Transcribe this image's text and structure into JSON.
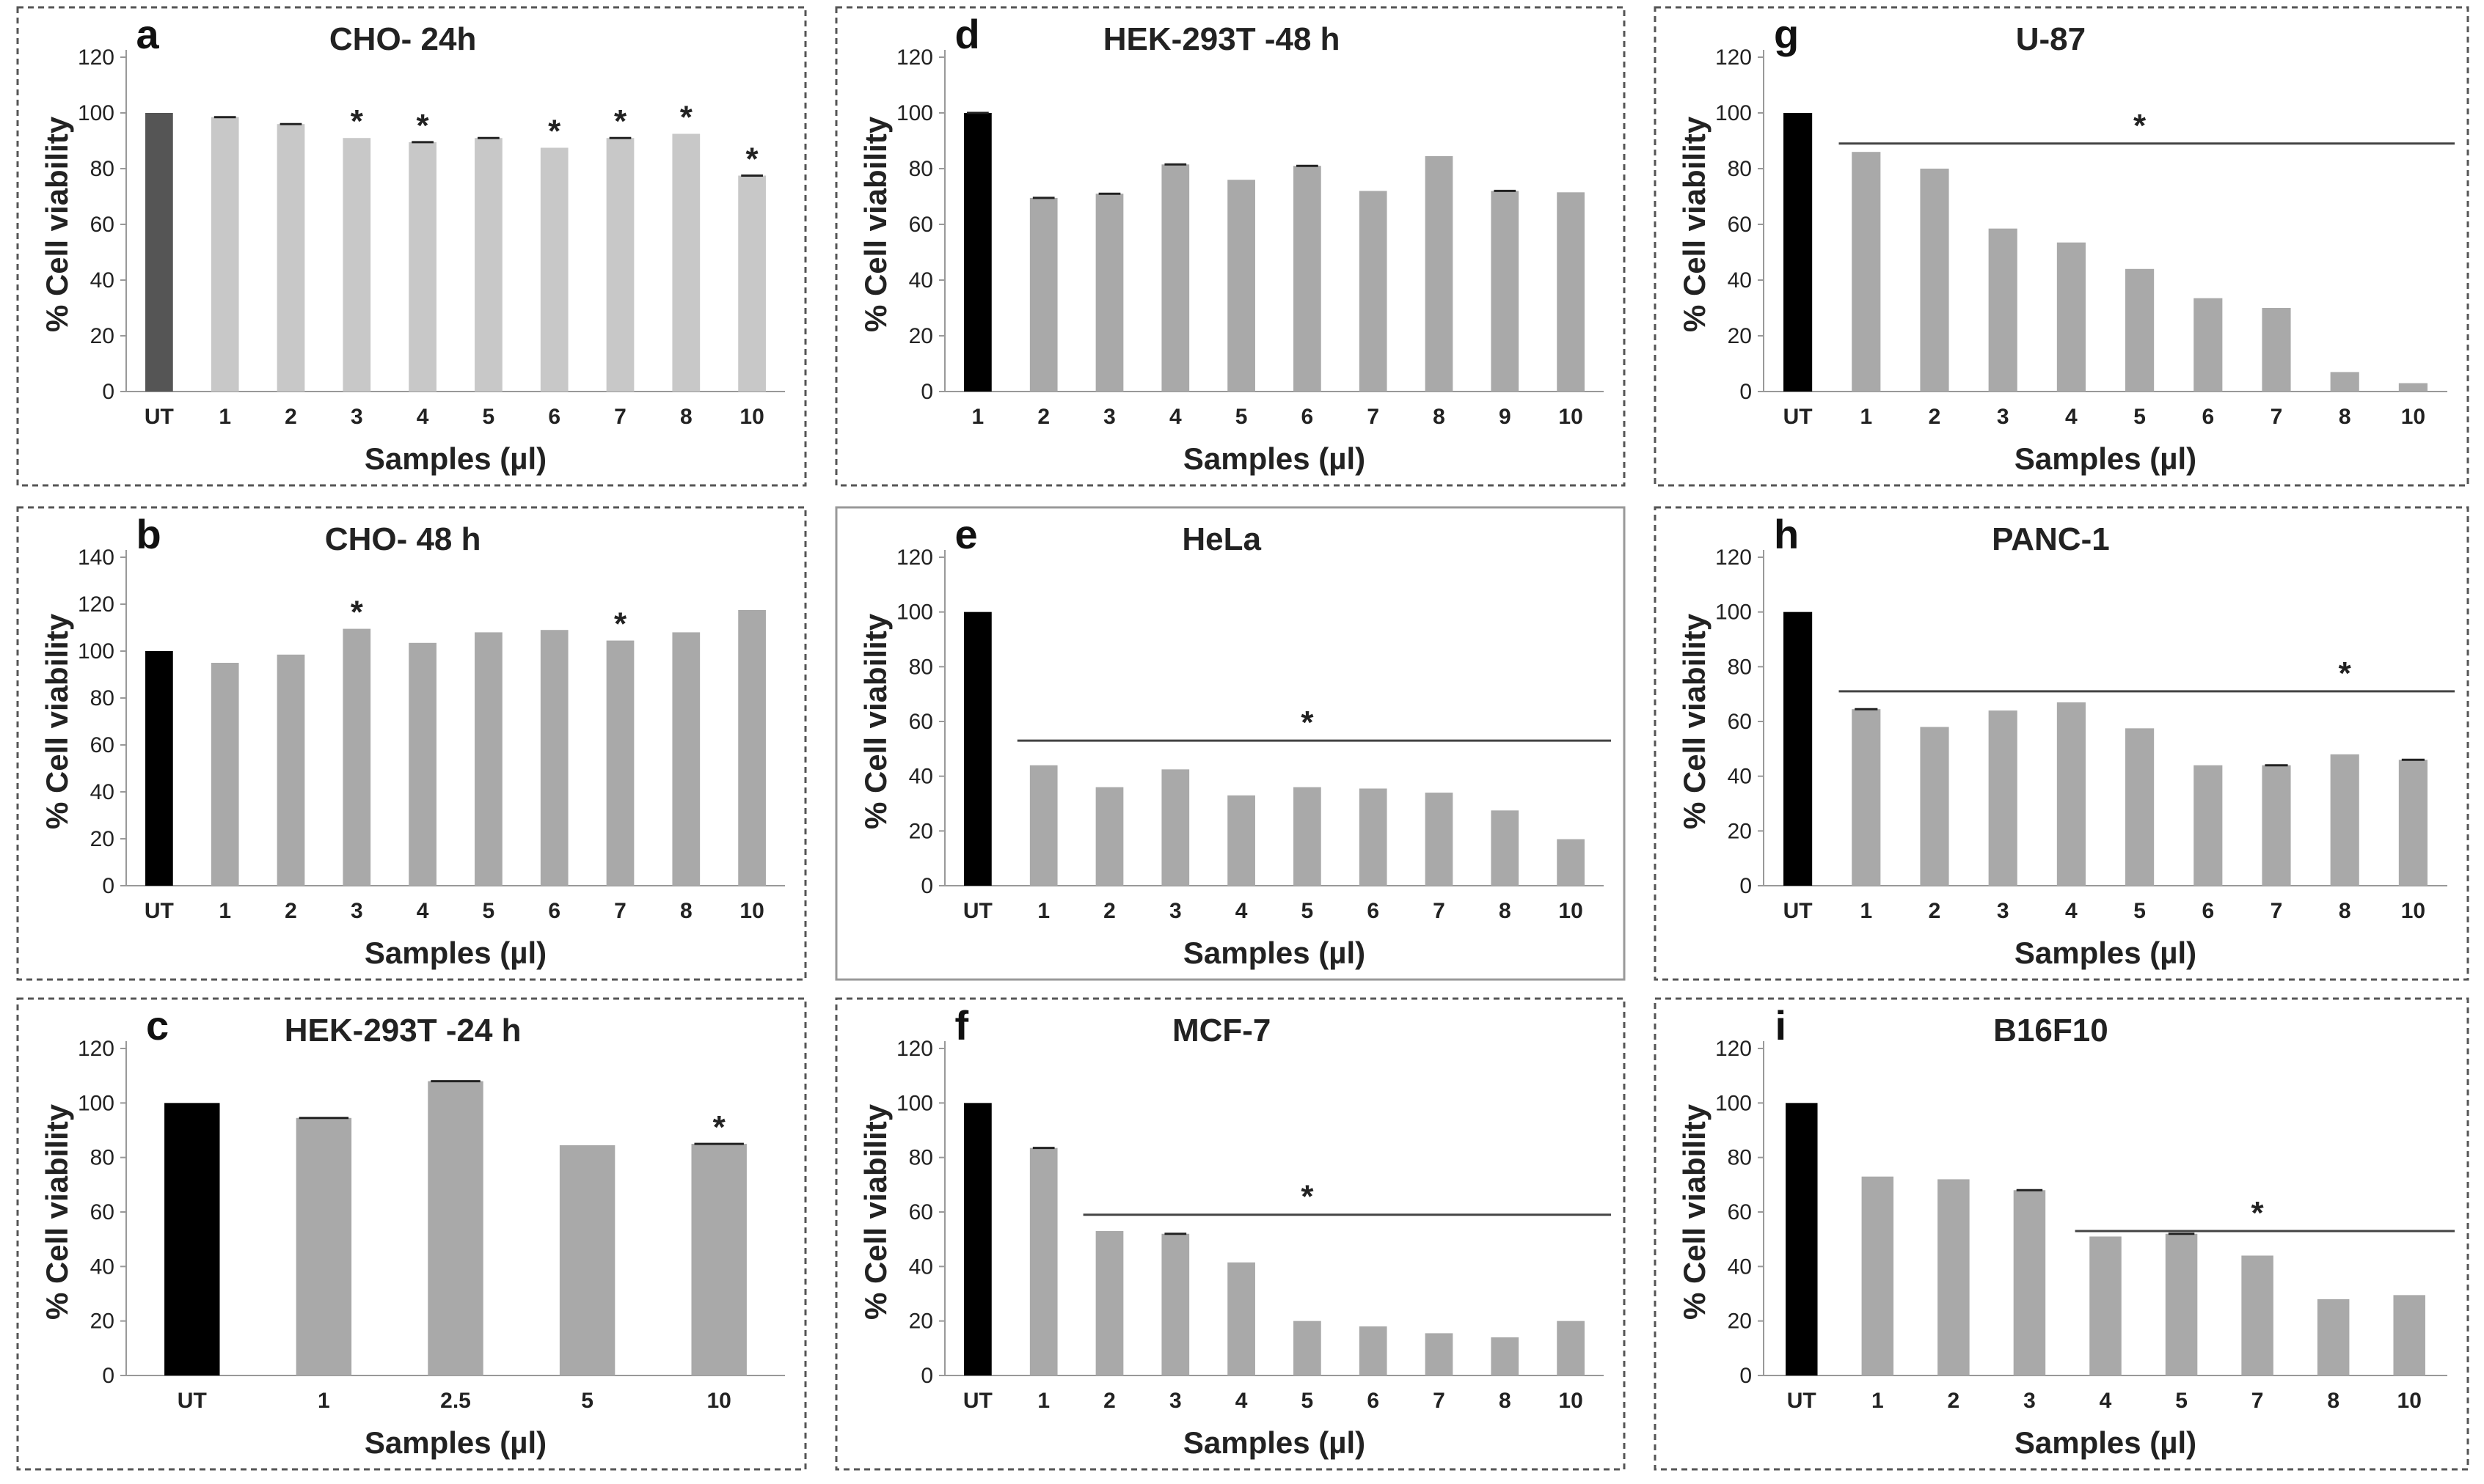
{
  "ylabel": "% Cell viability",
  "xlabel": "Samples (µl)",
  "colors": {
    "ctrl_dark": "#555555",
    "ctrl_black": "#000000",
    "bar_light": "#c8c8c8",
    "bar_mid": "#a9a9a9"
  },
  "chart_data": [
    {
      "id": "a",
      "type": "bar",
      "label": "a",
      "title": "CHO- 24h",
      "ylim": [
        0,
        120
      ],
      "yticks": [
        0,
        20,
        40,
        60,
        80,
        100,
        120
      ],
      "categories": [
        "UT",
        "1",
        "2",
        "3",
        "4",
        "5",
        "6",
        "7",
        "8",
        "10"
      ],
      "values": [
        100,
        98.5,
        96,
        91,
        89.5,
        91,
        87.5,
        91,
        92.5,
        77.5
      ],
      "stars": [
        3,
        4,
        6,
        7,
        8,
        9
      ],
      "errbars": [
        1,
        2,
        4,
        5,
        7,
        9
      ],
      "ctrl": "ctrl_dark",
      "bars": "bar_light",
      "star_label": "*"
    },
    {
      "id": "b",
      "type": "bar",
      "label": "b",
      "title": "CHO- 48 h",
      "ylim": [
        0,
        140
      ],
      "yticks": [
        0,
        20,
        40,
        60,
        80,
        100,
        120,
        140
      ],
      "categories": [
        "UT",
        "1",
        "2",
        "3",
        "4",
        "5",
        "6",
        "7",
        "8",
        "10"
      ],
      "values": [
        100,
        95,
        98.5,
        109.5,
        103.5,
        108,
        109,
        104.5,
        108,
        117.5
      ],
      "stars": [
        3,
        7
      ],
      "errbars": [],
      "ctrl": "ctrl_black",
      "bars": "bar_mid",
      "star_label": "*"
    },
    {
      "id": "c",
      "type": "bar",
      "label": "c",
      "title": "HEK-293T -24 h",
      "ylim": [
        0,
        120
      ],
      "yticks": [
        0,
        20,
        40,
        60,
        80,
        100,
        120
      ],
      "categories": [
        "UT",
        "1",
        "2.5",
        "5",
        "10"
      ],
      "values": [
        100,
        94.5,
        108,
        84.5,
        85
      ],
      "stars": [
        4
      ],
      "errbars": [
        1,
        2,
        4
      ],
      "ctrl": "ctrl_black",
      "bars": "bar_mid",
      "star_label": "*"
    },
    {
      "id": "d",
      "type": "bar",
      "label": "d",
      "title": "HEK-293T -48 h",
      "ylim": [
        0,
        120
      ],
      "yticks": [
        0,
        20,
        40,
        60,
        80,
        100,
        120
      ],
      "categories": [
        "1",
        "2",
        "3",
        "4",
        "5",
        "6",
        "7",
        "8",
        "9",
        "10"
      ],
      "values": [
        100,
        69.5,
        71,
        81.5,
        76,
        81,
        72,
        84.5,
        72,
        71.5
      ],
      "stars": [],
      "errbars": [
        0,
        1,
        2,
        3,
        5,
        8
      ],
      "ctrl": "ctrl_black",
      "bars": "bar_mid",
      "star_label": "*"
    },
    {
      "id": "e",
      "type": "bar",
      "label": "e",
      "title": "HeLa",
      "ylim": [
        0,
        120
      ],
      "yticks": [
        0,
        20,
        40,
        60,
        80,
        100,
        120
      ],
      "categories": [
        "UT",
        "1",
        "2",
        "3",
        "4",
        "5",
        "6",
        "7",
        "8",
        "10"
      ],
      "values": [
        100,
        44,
        36,
        42.5,
        33,
        36,
        35.5,
        34,
        27.5,
        17
      ],
      "stars": [],
      "errbars": [],
      "sig": {
        "from": 1,
        "y": 53,
        "star_at": 5
      },
      "ctrl": "ctrl_black",
      "bars": "bar_mid",
      "star_label": "*",
      "solid": true
    },
    {
      "id": "f",
      "type": "bar",
      "label": "f",
      "title": "MCF-7",
      "ylim": [
        0,
        120
      ],
      "yticks": [
        0,
        20,
        40,
        60,
        80,
        100,
        120
      ],
      "categories": [
        "UT",
        "1",
        "2",
        "3",
        "4",
        "5",
        "6",
        "7",
        "8",
        "10"
      ],
      "values": [
        100,
        83.5,
        53,
        52,
        41.5,
        20,
        18,
        15.5,
        14,
        20
      ],
      "stars": [],
      "errbars": [
        1,
        3
      ],
      "sig": {
        "from": 2,
        "y": 59,
        "star_at": 5
      },
      "ctrl": "ctrl_black",
      "bars": "bar_mid",
      "star_label": "*"
    },
    {
      "id": "g",
      "type": "bar",
      "label": "g",
      "title": "U-87",
      "ylim": [
        0,
        120
      ],
      "yticks": [
        0,
        20,
        40,
        60,
        80,
        100,
        120
      ],
      "categories": [
        "UT",
        "1",
        "2",
        "3",
        "4",
        "5",
        "6",
        "7",
        "8",
        "10"
      ],
      "values": [
        100,
        86,
        80,
        58.5,
        53.5,
        44,
        33.5,
        30,
        7,
        3
      ],
      "stars": [],
      "errbars": [],
      "sig": {
        "from": 1,
        "y": 89,
        "star_at": 5
      },
      "ctrl": "ctrl_black",
      "bars": "bar_mid",
      "star_label": "*"
    },
    {
      "id": "h",
      "type": "bar",
      "label": "h",
      "title": "PANC-1",
      "ylim": [
        0,
        120
      ],
      "yticks": [
        0,
        20,
        40,
        60,
        80,
        100,
        120
      ],
      "categories": [
        "UT",
        "1",
        "2",
        "3",
        "4",
        "5",
        "6",
        "7",
        "8",
        "10"
      ],
      "values": [
        100,
        64.5,
        58,
        64,
        67,
        57.5,
        44,
        44,
        48,
        46
      ],
      "stars": [],
      "errbars": [
        1,
        7,
        9
      ],
      "sig": {
        "from": 1,
        "y": 71,
        "star_at": 8
      },
      "ctrl": "ctrl_black",
      "bars": "bar_mid",
      "star_label": "*"
    },
    {
      "id": "i",
      "type": "bar",
      "label": "i",
      "title": "B16F10",
      "ylim": [
        0,
        120
      ],
      "yticks": [
        0,
        20,
        40,
        60,
        80,
        100,
        120
      ],
      "categories": [
        "UT",
        "1",
        "2",
        "3",
        "4",
        "5",
        "7",
        "8",
        "10"
      ],
      "values": [
        100,
        73,
        72,
        68,
        51,
        52,
        44,
        28,
        29.5
      ],
      "stars": [],
      "errbars": [
        3,
        5
      ],
      "sig": {
        "from": 4,
        "y": 53,
        "star_at": 6
      },
      "ctrl": "ctrl_black",
      "bars": "bar_mid",
      "star_label": "*"
    }
  ]
}
